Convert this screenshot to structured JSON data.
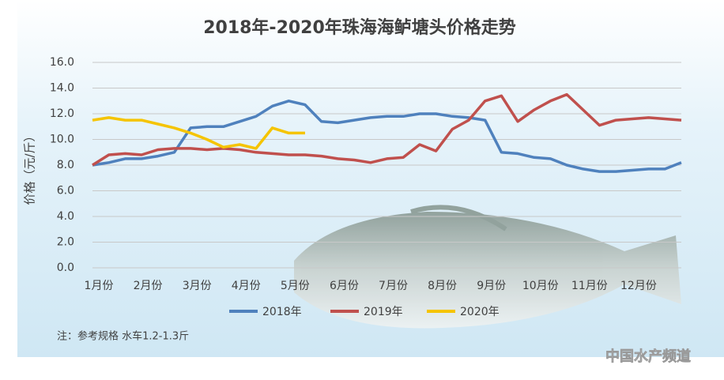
{
  "chart_data": {
    "type": "line",
    "title": "2018年-2020年珠海海鲈塘头价格走势",
    "y_label": "价格（元/斤）",
    "note": "注：参考规格  水车1.2-1.3斤",
    "watermark": "中国水产频道",
    "categories": [
      "1月份",
      null,
      null,
      "2月份",
      null,
      null,
      "3月份",
      null,
      null,
      "4月份",
      null,
      null,
      "5月份",
      null,
      null,
      "6月份",
      null,
      null,
      "7月份",
      null,
      null,
      "8月份",
      null,
      null,
      "9月份",
      null,
      null,
      "10月份",
      null,
      null,
      "11月份",
      null,
      null,
      "12月份",
      null,
      null,
      null
    ],
    "series": [
      {
        "name": "2018年",
        "color": "#4f81bd",
        "values": [
          8.0,
          8.2,
          8.5,
          8.5,
          8.7,
          9.0,
          10.9,
          11.0,
          11.0,
          11.4,
          11.8,
          12.6,
          13.0,
          12.7,
          11.4,
          11.3,
          11.5,
          11.7,
          11.8,
          11.8,
          12.0,
          12.0,
          11.8,
          11.7,
          11.5,
          9.0,
          8.9,
          8.6,
          8.5,
          8.0,
          7.7,
          7.5,
          7.5,
          7.6,
          7.7,
          7.7,
          8.2
        ]
      },
      {
        "name": "2019年",
        "color": "#c0504d",
        "values": [
          8.0,
          8.8,
          8.9,
          8.8,
          9.2,
          9.3,
          9.3,
          9.2,
          9.3,
          9.2,
          9.0,
          8.9,
          8.8,
          8.8,
          8.7,
          8.5,
          8.4,
          8.2,
          8.5,
          8.6,
          9.6,
          9.1,
          10.8,
          11.5,
          13.0,
          13.4,
          11.4,
          12.3,
          13.0,
          13.5,
          12.3,
          11.1,
          11.5,
          11.6,
          11.7,
          11.6,
          11.5
        ]
      },
      {
        "name": "2020年",
        "color": "#f5c400",
        "values": [
          11.5,
          11.7,
          11.5,
          11.5,
          11.2,
          10.9,
          10.5,
          10.0,
          9.4,
          9.6,
          9.3,
          10.9,
          10.5,
          10.5,
          null,
          null,
          null,
          null,
          null,
          null,
          null,
          null,
          null,
          null,
          null,
          null,
          null,
          null,
          null,
          null,
          null,
          null,
          null,
          null,
          null,
          null,
          null
        ]
      }
    ],
    "ylim": [
      0,
      16
    ],
    "yticks": [
      {
        "value": 0,
        "label": "0.0"
      },
      {
        "value": 2,
        "label": "2.0"
      },
      {
        "value": 4,
        "label": "4.0"
      },
      {
        "value": 6,
        "label": "6.0"
      },
      {
        "value": 8,
        "label": "8.0"
      },
      {
        "value": 10,
        "label": "10.0"
      },
      {
        "value": 12,
        "label": "12.0"
      },
      {
        "value": 14,
        "label": "14.0"
      },
      {
        "value": 16,
        "label": "16.0"
      }
    ],
    "grid": true
  }
}
